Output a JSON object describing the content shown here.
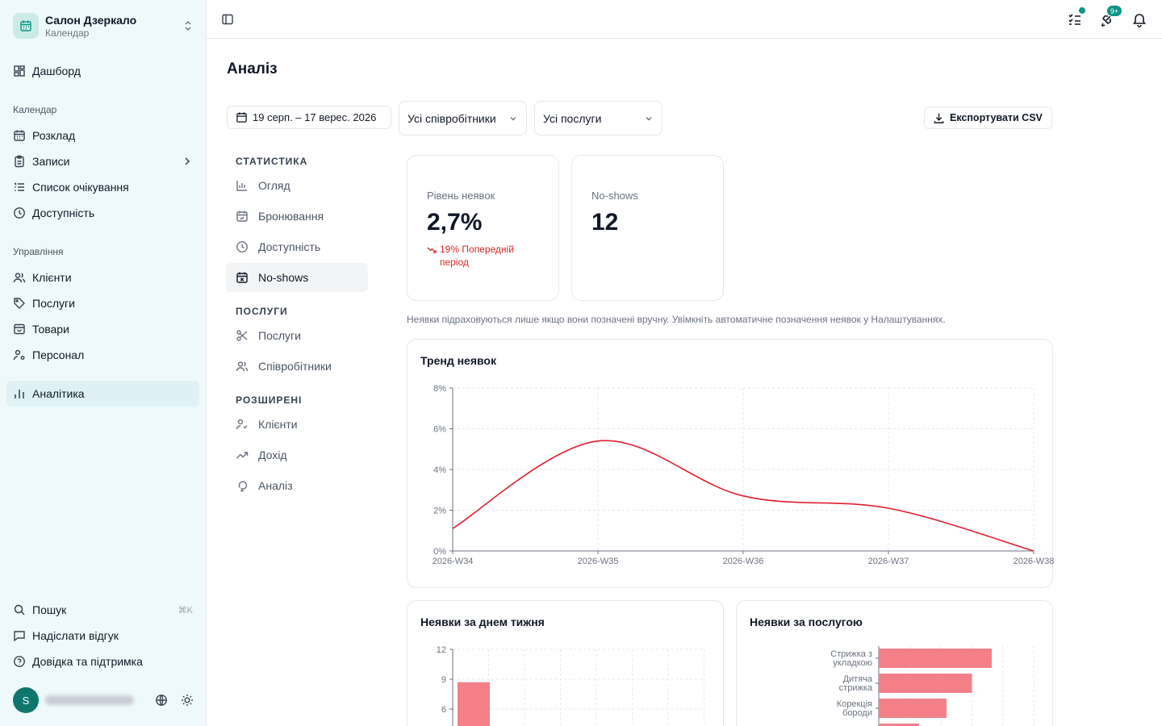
{
  "workspace": {
    "name": "Салон Дзеркало",
    "subtitle": "Календар"
  },
  "sidebar": {
    "dashboard": "Дашборд",
    "calendar_group": "Календар",
    "calendar": [
      {
        "label": "Розклад",
        "icon": "calendar-icon"
      },
      {
        "label": "Записи",
        "icon": "clipboard-icon"
      },
      {
        "label": "Список очікування",
        "icon": "list-ordered-icon"
      },
      {
        "label": "Доступність",
        "icon": "clock-icon"
      }
    ],
    "manage_group": "Управління",
    "manage": [
      {
        "label": "Клієнти",
        "icon": "users-icon"
      },
      {
        "label": "Послуги",
        "icon": "tag-icon"
      },
      {
        "label": "Товари",
        "icon": "box-icon"
      },
      {
        "label": "Персонал",
        "icon": "user-cog-icon"
      }
    ],
    "analytics": "Аналітика",
    "search": "Пошук",
    "search_kbd": "⌘K",
    "feedback": "Надіслати відгук",
    "help": "Довідка та підтримка",
    "avatar_initial": "S"
  },
  "topbar": {
    "badge": "9+"
  },
  "page": {
    "title": "Аналіз"
  },
  "filters": {
    "date_range": "19 серп. – 17 верес. 2026",
    "staff": "Усі співробітники",
    "services": "Усі послуги",
    "export": "Експортувати CSV"
  },
  "subnav": {
    "stats_header": "СТАТИСТИКА",
    "stats": [
      "Огляд",
      "Бронювання",
      "Доступність",
      "No-shows"
    ],
    "services_header": "ПОСЛУГИ",
    "services": [
      "Послуги",
      "Співробітники"
    ],
    "advanced_header": "РОЗШИРЕНІ",
    "advanced": [
      "Клієнти",
      "Дохід",
      "Аналіз"
    ]
  },
  "stats": {
    "rate_label": "Рівень неявок",
    "rate_value": "2,7%",
    "rate_delta": "19% Попередній період",
    "noshows_label": "No-shows",
    "noshows_value": "12"
  },
  "note": "Неявки підраховуються лише якщо вони позначені вручну. Увімкніть автоматичне позначення неявок у Налаштуваннях.",
  "colors": {
    "line": "#e11d2e",
    "bar": "#f38088",
    "accent": "#0d9488"
  },
  "chart_data": [
    {
      "type": "line",
      "title": "Тренд неявок",
      "x": [
        "2026-W34",
        "2026-W35",
        "2026-W36",
        "2026-W37",
        "2026-W38"
      ],
      "values": [
        1.1,
        5.4,
        2.7,
        2.1,
        0
      ],
      "yticks": [
        "0%",
        "2%",
        "4%",
        "6%",
        "8%"
      ],
      "ylim": [
        0,
        8
      ],
      "grid": true
    },
    {
      "type": "bar",
      "title": "Неявки за днем тижня",
      "yticks": [
        "6",
        "9",
        "12"
      ],
      "ylim": [
        0,
        12
      ],
      "values": [
        8.7
      ],
      "grid": true
    },
    {
      "type": "bar",
      "orientation": "horizontal",
      "title": "Неявки за послугою",
      "categories": [
        [
          "Стрижка з",
          "укладкою"
        ],
        [
          "Дитяча",
          "стрижка"
        ],
        [
          "Корекція",
          "бороди"
        ]
      ],
      "values": [
        4,
        3.3,
        2.4
      ],
      "grid": true
    }
  ]
}
